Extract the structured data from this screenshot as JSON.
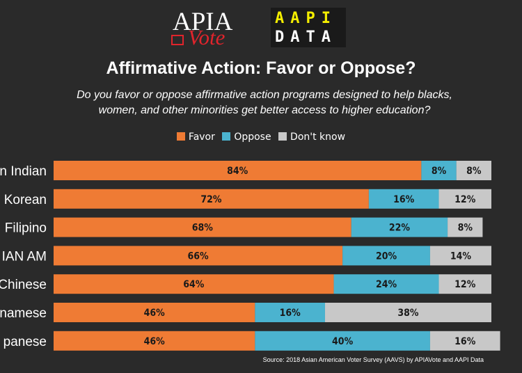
{
  "logos": {
    "apia_text": "APIA",
    "vote_text": "Vote",
    "aapi_row1": "AAPI",
    "aapi_row2": "DATA"
  },
  "chart_data": {
    "type": "bar",
    "orientation": "horizontal",
    "stacked": true,
    "title": "Affirmative Action: Favor or Oppose?",
    "subtitle": "Do you favor or oppose affirmative action programs designed to help blacks, women, and other minorities get better access to higher education?",
    "categories": [
      "n Indian",
      "Korean",
      "Filipino",
      "IAN AM",
      "Chinese",
      "namese",
      "panese"
    ],
    "series": [
      {
        "name": "Favor",
        "color": "#ef7b34",
        "values": [
          84,
          72,
          68,
          66,
          64,
          46,
          46
        ]
      },
      {
        "name": "Oppose",
        "color": "#4bb3cf",
        "values": [
          8,
          16,
          22,
          20,
          24,
          16,
          40
        ]
      },
      {
        "name": "Don't know",
        "color": "#c8c8c8",
        "values": [
          8,
          12,
          8,
          14,
          12,
          38,
          16
        ]
      }
    ],
    "value_suffix": "%",
    "legend_position": "top",
    "grid": false,
    "source": "Source: 2018 Asian American Voter Survey (AAVS) by APIAVote and AAPI Data"
  }
}
